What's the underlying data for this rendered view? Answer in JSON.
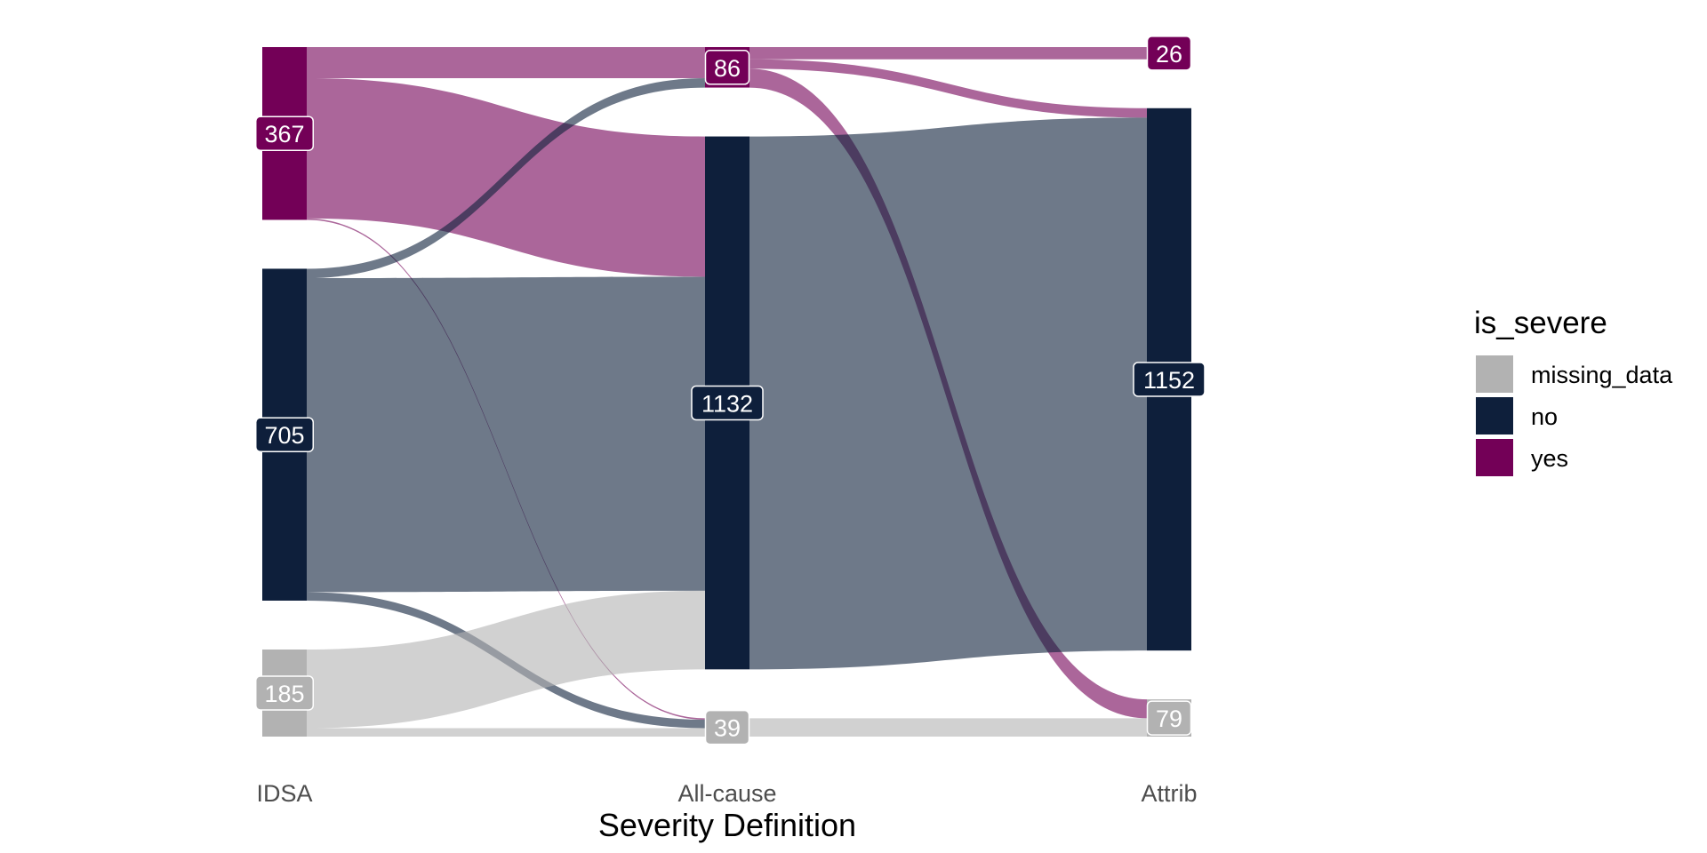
{
  "chart_data": {
    "type": "alluvial",
    "title": "",
    "xlabel": "Severity Definition",
    "ylabel": "",
    "axes": [
      "IDSA",
      "All-cause",
      "Attrib"
    ],
    "legend": {
      "title": "is_severe",
      "position": "right",
      "entries": [
        {
          "category": "missing_data",
          "label": "missing_data",
          "color": "#b2b2b2"
        },
        {
          "category": "no",
          "label": "no",
          "color": "#0e1f3b"
        },
        {
          "category": "yes",
          "label": "yes",
          "color": "#730057"
        }
      ]
    },
    "stacking_order": [
      "yes",
      "no",
      "missing_data"
    ],
    "nodes": [
      {
        "axis": "IDSA",
        "category": "yes",
        "count": 367,
        "label": "367"
      },
      {
        "axis": "IDSA",
        "category": "no",
        "count": 705,
        "label": "705"
      },
      {
        "axis": "IDSA",
        "category": "missing_data",
        "count": 185,
        "label": "185"
      },
      {
        "axis": "All-cause",
        "category": "yes",
        "count": 86,
        "label": "86"
      },
      {
        "axis": "All-cause",
        "category": "no",
        "count": 1132,
        "label": "1132"
      },
      {
        "axis": "All-cause",
        "category": "missing_data",
        "count": 39,
        "label": "39"
      },
      {
        "axis": "Attrib",
        "category": "yes",
        "count": 26,
        "label": "26"
      },
      {
        "axis": "Attrib",
        "category": "no",
        "count": 1152,
        "label": "1152"
      },
      {
        "axis": "Attrib",
        "category": "missing_data",
        "count": 79,
        "label": "79"
      }
    ],
    "flows": [
      {
        "from_axis": "IDSA",
        "from": "yes",
        "to_axis": "All-cause",
        "to": "yes",
        "value": 66
      },
      {
        "from_axis": "IDSA",
        "from": "yes",
        "to_axis": "All-cause",
        "to": "no",
        "value": 298
      },
      {
        "from_axis": "IDSA",
        "from": "yes",
        "to_axis": "All-cause",
        "to": "missing_data",
        "value": 3
      },
      {
        "from_axis": "IDSA",
        "from": "no",
        "to_axis": "All-cause",
        "to": "yes",
        "value": 20
      },
      {
        "from_axis": "IDSA",
        "from": "no",
        "to_axis": "All-cause",
        "to": "no",
        "value": 667
      },
      {
        "from_axis": "IDSA",
        "from": "no",
        "to_axis": "All-cause",
        "to": "missing_data",
        "value": 18
      },
      {
        "from_axis": "IDSA",
        "from": "missing_data",
        "to_axis": "All-cause",
        "to": "no",
        "value": 167
      },
      {
        "from_axis": "IDSA",
        "from": "missing_data",
        "to_axis": "All-cause",
        "to": "missing_data",
        "value": 18
      },
      {
        "from_axis": "All-cause",
        "from": "yes",
        "to_axis": "Attrib",
        "to": "yes",
        "value": 26
      },
      {
        "from_axis": "All-cause",
        "from": "yes",
        "to_axis": "Attrib",
        "to": "no",
        "value": 20
      },
      {
        "from_axis": "All-cause",
        "from": "yes",
        "to_axis": "Attrib",
        "to": "missing_data",
        "value": 40
      },
      {
        "from_axis": "All-cause",
        "from": "no",
        "to_axis": "Attrib",
        "to": "no",
        "value": 1132
      },
      {
        "from_axis": "All-cause",
        "from": "missing_data",
        "to_axis": "Attrib",
        "to": "missing_data",
        "value": 39
      }
    ]
  }
}
